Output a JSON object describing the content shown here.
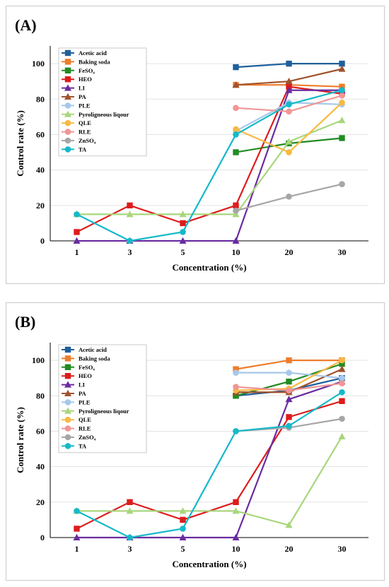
{
  "chart_data": [
    {
      "type": "line",
      "panel_label": "(A)",
      "xlabel": "Concentration (%)",
      "ylabel": "Control rate (%)",
      "categories": [
        "1",
        "3",
        "5",
        "10",
        "20",
        "30"
      ],
      "ylim": [
        0,
        110
      ],
      "yticks": [
        0,
        20,
        40,
        60,
        80,
        100
      ],
      "grid": true,
      "legend_position": "top-left",
      "series": [
        {
          "name": "Acetic acid",
          "color": "#1f5f9a",
          "marker": "square",
          "values": [
            null,
            null,
            null,
            98,
            100,
            100
          ]
        },
        {
          "name": "Baking soda",
          "color": "#ee7d2b",
          "marker": "square",
          "values": [
            null,
            null,
            null,
            88,
            88,
            87
          ]
        },
        {
          "name": "FeSO₄",
          "color": "#228b22",
          "marker": "square",
          "values": [
            null,
            null,
            null,
            50,
            55,
            58
          ]
        },
        {
          "name": "HEO",
          "color": "#dd1c1c",
          "marker": "square",
          "values": [
            5,
            20,
            10,
            20,
            87,
            83
          ]
        },
        {
          "name": "LI",
          "color": "#6a2ca0",
          "marker": "triangle",
          "values": [
            0,
            0,
            0,
            0,
            85,
            85
          ]
        },
        {
          "name": "PA",
          "color": "#a0522d",
          "marker": "triangle",
          "values": [
            null,
            null,
            null,
            88,
            90,
            97
          ]
        },
        {
          "name": "PLE",
          "color": "#a6c8ea",
          "marker": "circle",
          "values": [
            null,
            null,
            null,
            62,
            78,
            77
          ]
        },
        {
          "name": "Pyroligneous liqour",
          "color": "#a9d67c",
          "marker": "triangle",
          "values": [
            15,
            15,
            15,
            15,
            56,
            68
          ]
        },
        {
          "name": "QLE",
          "color": "#f7b943",
          "marker": "circle",
          "values": [
            null,
            null,
            null,
            63,
            50,
            78
          ]
        },
        {
          "name": "RLE",
          "color": "#f09696",
          "marker": "circle",
          "values": [
            null,
            null,
            null,
            75,
            73,
            82
          ]
        },
        {
          "name": "ZnSO₄",
          "color": "#a6a6a6",
          "marker": "circle",
          "values": [
            null,
            null,
            null,
            17,
            25,
            32
          ]
        },
        {
          "name": "TA",
          "color": "#15b9c9",
          "marker": "circle",
          "values": [
            15,
            0,
            5,
            60,
            77,
            85
          ]
        }
      ]
    },
    {
      "type": "line",
      "panel_label": "(B)",
      "xlabel": "Concentration (%)",
      "ylabel": "Control rate (%)",
      "categories": [
        "1",
        "3",
        "5",
        "10",
        "20",
        "30"
      ],
      "ylim": [
        0,
        110
      ],
      "yticks": [
        0,
        20,
        40,
        60,
        80,
        100
      ],
      "grid": true,
      "legend_position": "top-left",
      "series": [
        {
          "name": "Acetic acid",
          "color": "#1f5f9a",
          "marker": "square",
          "values": [
            null,
            null,
            null,
            80,
            83,
            90
          ]
        },
        {
          "name": "Baking soda",
          "color": "#ee7d2b",
          "marker": "square",
          "values": [
            null,
            null,
            null,
            95,
            100,
            100
          ]
        },
        {
          "name": "FeSO₄",
          "color": "#228b22",
          "marker": "square",
          "values": [
            null,
            null,
            null,
            80,
            88,
            98
          ]
        },
        {
          "name": "HEO",
          "color": "#dd1c1c",
          "marker": "square",
          "values": [
            5,
            20,
            10,
            20,
            68,
            77
          ]
        },
        {
          "name": "LI",
          "color": "#6a2ca0",
          "marker": "triangle",
          "values": [
            0,
            0,
            0,
            0,
            78,
            88
          ]
        },
        {
          "name": "PA",
          "color": "#a0522d",
          "marker": "triangle",
          "values": [
            null,
            null,
            null,
            82,
            82,
            95
          ]
        },
        {
          "name": "PLE",
          "color": "#a6c8ea",
          "marker": "circle",
          "values": [
            null,
            null,
            null,
            93,
            93,
            90
          ]
        },
        {
          "name": "Pyroligneous liqour",
          "color": "#a9d67c",
          "marker": "triangle",
          "values": [
            15,
            15,
            15,
            15,
            7,
            57
          ]
        },
        {
          "name": "QLE",
          "color": "#f7b943",
          "marker": "circle",
          "values": [
            null,
            null,
            null,
            83,
            84,
            100
          ]
        },
        {
          "name": "RLE",
          "color": "#f09696",
          "marker": "circle",
          "values": [
            null,
            null,
            null,
            85,
            83,
            87
          ]
        },
        {
          "name": "ZnSO₄",
          "color": "#a6a6a6",
          "marker": "circle",
          "values": [
            null,
            null,
            null,
            60,
            62,
            67
          ]
        },
        {
          "name": "TA",
          "color": "#15b9c9",
          "marker": "circle",
          "values": [
            15,
            0,
            5,
            60,
            63,
            82
          ]
        }
      ]
    }
  ]
}
